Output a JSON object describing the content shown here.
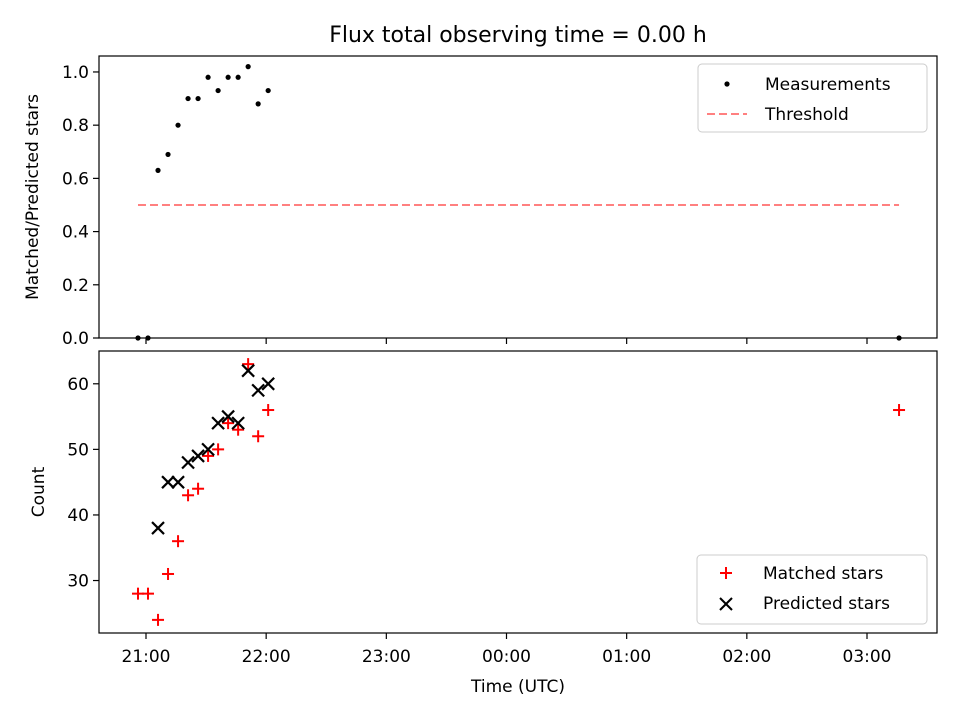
{
  "title": "Flux total observing time = 0.00 h",
  "colors": {
    "matched": "#ff0000",
    "predicted": "#000000",
    "threshold": "#ff8080",
    "measurement": "#000000"
  },
  "chart_data": [
    {
      "type": "scatter",
      "ylabel": "Matched/Predicted stars",
      "ylim": [
        0,
        1.06
      ],
      "yticks": [
        "0.0",
        "0.2",
        "0.4",
        "0.6",
        "0.8",
        "1.0"
      ],
      "ytick_values": [
        0,
        0.2,
        0.4,
        0.6,
        0.8,
        1.0
      ],
      "legend": {
        "placement": "top-right",
        "entries": [
          "Measurements",
          "Threshold"
        ]
      },
      "series": [
        {
          "name": "Measurements",
          "marker": "dot",
          "points": [
            [
              "20:56",
              0.0
            ],
            [
              "21:01",
              0.0
            ],
            [
              "21:06",
              0.63
            ],
            [
              "21:11",
              0.69
            ],
            [
              "21:16",
              0.8
            ],
            [
              "21:21",
              0.9
            ],
            [
              "21:26",
              0.9
            ],
            [
              "21:31",
              0.98
            ],
            [
              "21:36",
              0.93
            ],
            [
              "21:41",
              0.98
            ],
            [
              "21:46",
              0.98
            ],
            [
              "21:51",
              1.02
            ],
            [
              "21:56",
              0.88
            ],
            [
              "22:01",
              0.93
            ],
            [
              "03:16",
              0.0
            ]
          ]
        },
        {
          "name": "Threshold",
          "style": "dashed",
          "points": [
            [
              "20:56",
              0.5
            ],
            [
              "03:16",
              0.5
            ]
          ]
        }
      ]
    },
    {
      "type": "scatter",
      "xlabel": "Time (UTC)",
      "ylabel": "Count",
      "ylim": [
        22,
        65
      ],
      "yticks": [
        "30",
        "40",
        "50",
        "60"
      ],
      "ytick_values": [
        30,
        40,
        50,
        60
      ],
      "xticks": [
        "21:00",
        "22:00",
        "23:00",
        "00:00",
        "01:00",
        "02:00",
        "03:00"
      ],
      "legend": {
        "placement": "bottom-right",
        "entries": [
          "Matched stars",
          "Predicted stars"
        ]
      },
      "series": [
        {
          "name": "Matched stars",
          "marker": "plus",
          "points": [
            [
              "20:56",
              28
            ],
            [
              "21:01",
              28
            ],
            [
              "21:06",
              24
            ],
            [
              "21:11",
              31
            ],
            [
              "21:16",
              36
            ],
            [
              "21:21",
              43
            ],
            [
              "21:26",
              44
            ],
            [
              "21:31",
              49
            ],
            [
              "21:36",
              50
            ],
            [
              "21:41",
              54
            ],
            [
              "21:46",
              53
            ],
            [
              "21:51",
              63
            ],
            [
              "21:56",
              52
            ],
            [
              "22:01",
              56
            ],
            [
              "03:16",
              56
            ]
          ]
        },
        {
          "name": "Predicted stars",
          "marker": "x",
          "points": [
            [
              "21:06",
              38
            ],
            [
              "21:11",
              45
            ],
            [
              "21:16",
              45
            ],
            [
              "21:21",
              48
            ],
            [
              "21:26",
              49
            ],
            [
              "21:31",
              50
            ],
            [
              "21:36",
              54
            ],
            [
              "21:41",
              55
            ],
            [
              "21:46",
              54
            ],
            [
              "21:51",
              62
            ],
            [
              "21:56",
              59
            ],
            [
              "22:01",
              60
            ]
          ]
        }
      ]
    }
  ]
}
